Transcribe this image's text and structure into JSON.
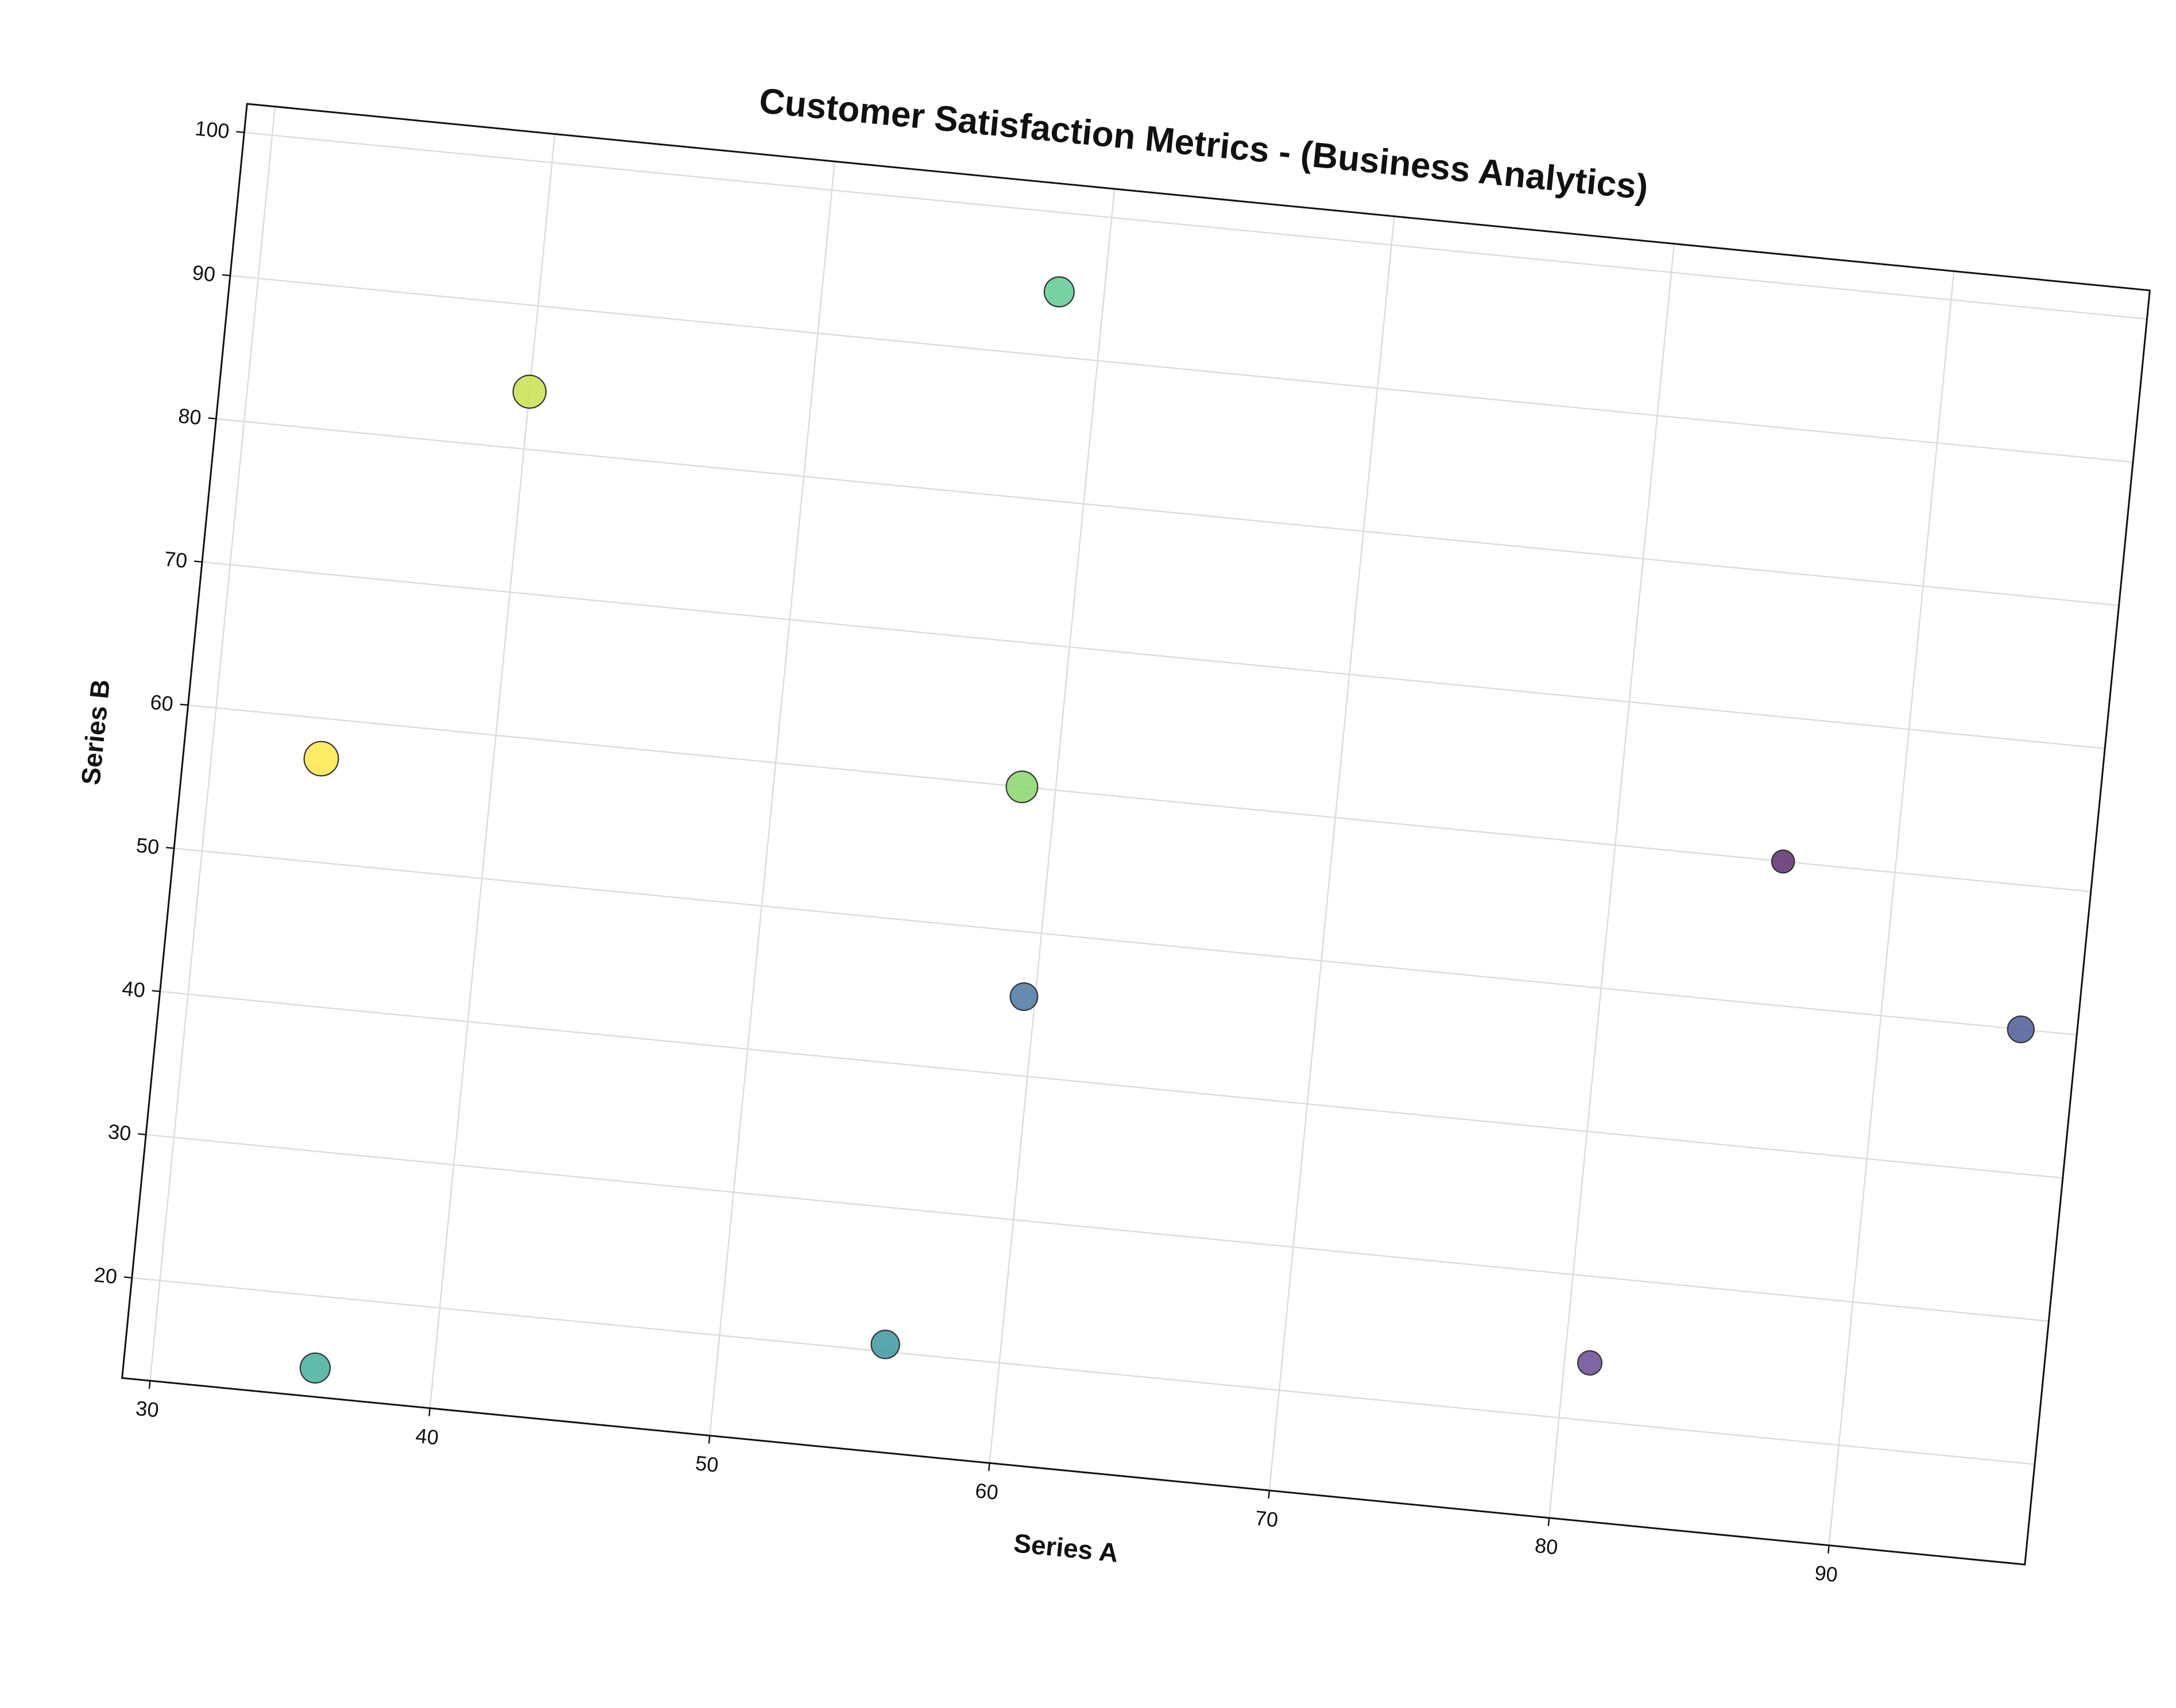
{
  "chart_data": {
    "type": "scatter",
    "title": "Customer Satisfaction Metrics - (Business Analytics)",
    "xlabel": "Series A",
    "ylabel": "Series B",
    "xlim": [
      29,
      97
    ],
    "ylim": [
      13,
      102
    ],
    "xticks": [
      30,
      40,
      50,
      60,
      70,
      80,
      90
    ],
    "yticks": [
      20,
      30,
      40,
      50,
      60,
      70,
      80,
      90,
      100
    ],
    "xtick_labels": [
      "30",
      "40",
      "50",
      "60",
      "70",
      "80",
      "90"
    ],
    "ytick_labels": [
      "20",
      "30",
      "40",
      "50",
      "60",
      "70",
      "80",
      "90",
      "100"
    ],
    "grid": true,
    "colormap": "viridis",
    "points": [
      {
        "x": 58.4,
        "y": 94.5,
        "size": 95,
        "color": "#5fc991"
      },
      {
        "x": 40.0,
        "y": 84.0,
        "size": 115,
        "color": "#c9e04d"
      },
      {
        "x": 33.9,
        "y": 57.2,
        "size": 125,
        "color": "#fde84a"
      },
      {
        "x": 58.8,
        "y": 60.0,
        "size": 105,
        "color": "#8bd66b"
      },
      {
        "x": 86.0,
        "y": 60.0,
        "size": 55,
        "color": "#5e2d6e"
      },
      {
        "x": 59.6,
        "y": 45.5,
        "size": 80,
        "color": "#4a77a0"
      },
      {
        "x": 95.0,
        "y": 50.0,
        "size": 75,
        "color": "#4d5a95"
      },
      {
        "x": 35.8,
        "y": 15.0,
        "size": 95,
        "color": "#43b09c"
      },
      {
        "x": 55.9,
        "y": 20.5,
        "size": 85,
        "color": "#3d97a1"
      },
      {
        "x": 80.9,
        "y": 24.0,
        "size": 62,
        "color": "#6a4a94"
      }
    ]
  }
}
